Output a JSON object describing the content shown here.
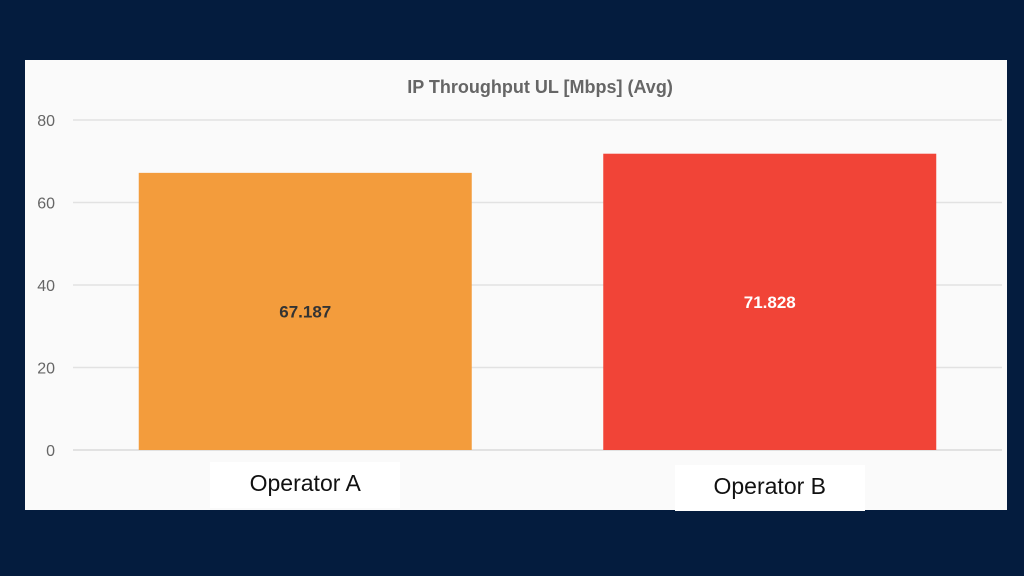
{
  "chart_data": {
    "type": "bar",
    "title": "IP Throughput UL [Mbps] (Avg)",
    "categories": [
      "Operator A",
      "Operator B"
    ],
    "series": [
      {
        "values": [
          67.187,
          71.828
        ],
        "data_labels": [
          "67.187",
          "71.828"
        ],
        "colors": [
          "#f39c3c",
          "#f14437"
        ]
      }
    ],
    "data_label_colors": [
      "#333333",
      "#ffffff"
    ],
    "ylim": [
      0,
      80
    ],
    "yticks": [
      0,
      20,
      40,
      60,
      80
    ],
    "grid": true,
    "legend": "none",
    "xlabel": "",
    "ylabel": ""
  },
  "colors": {
    "background": "#041c3e",
    "panel": "#fafafa",
    "gridline": "#e2e2e2",
    "title_text": "#666666",
    "tick_text": "#666666"
  }
}
